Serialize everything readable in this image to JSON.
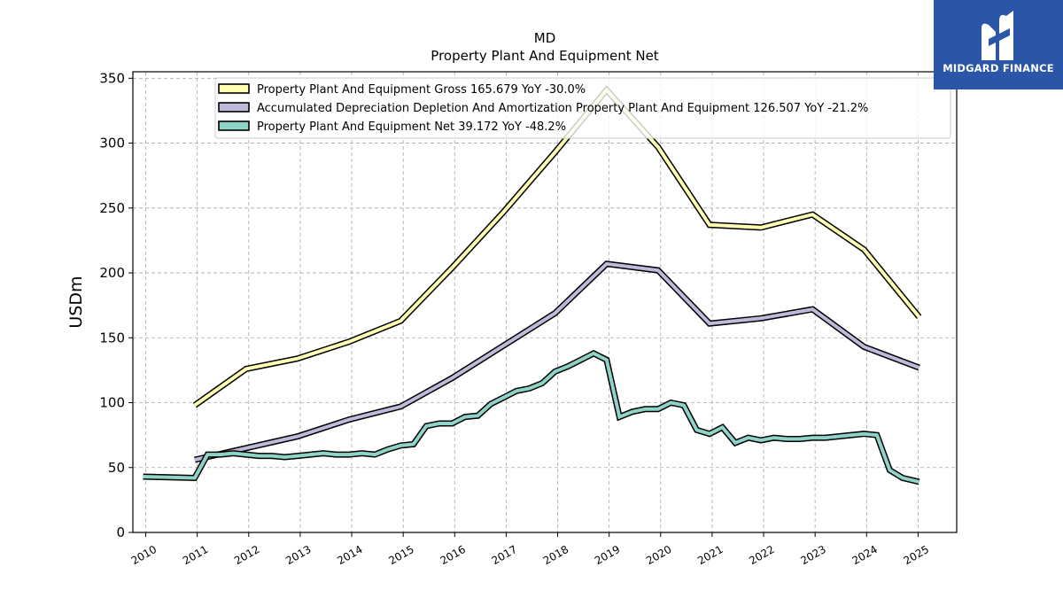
{
  "chart_data": {
    "type": "line",
    "title": "MD",
    "subtitle": "Property Plant And Equipment Net",
    "ylabel": "USDm",
    "ylim": [
      0,
      355
    ],
    "xlim": [
      2009.75,
      2025.75
    ],
    "yticks": [
      0,
      50,
      100,
      150,
      200,
      250,
      300,
      350
    ],
    "xticks": [
      "2010",
      "2011",
      "2012",
      "2013",
      "2014",
      "2015",
      "2016",
      "2017",
      "2018",
      "2019",
      "2020",
      "2021",
      "2022",
      "2023",
      "2024",
      "2025"
    ],
    "grid": true,
    "legend_position": "top-right",
    "series": [
      {
        "name": "Property Plant And Equipment Gross  165.679 YoY -30.0%",
        "color": "#ffffb3",
        "points": [
          [
            2010.95,
            98
          ],
          [
            2011.95,
            126
          ],
          [
            2012.95,
            134
          ],
          [
            2013.95,
            147
          ],
          [
            2014.95,
            163
          ],
          [
            2015.95,
            204
          ],
          [
            2016.95,
            247
          ],
          [
            2017.95,
            293
          ],
          [
            2018.95,
            341
          ],
          [
            2019.95,
            297
          ],
          [
            2020.95,
            237
          ],
          [
            2021.95,
            235
          ],
          [
            2022.95,
            245
          ],
          [
            2023.95,
            218
          ],
          [
            2025.02,
            166
          ]
        ]
      },
      {
        "name": "Accumulated Depreciation Depletion And Amortization Property Plant And Equipment  126.507 YoY -21.2%",
        "color": "#bebada",
        "points": [
          [
            2010.95,
            56
          ],
          [
            2011.95,
            65
          ],
          [
            2012.95,
            74
          ],
          [
            2013.95,
            87
          ],
          [
            2014.95,
            97
          ],
          [
            2015.95,
            119
          ],
          [
            2016.95,
            144
          ],
          [
            2017.95,
            169
          ],
          [
            2018.95,
            207
          ],
          [
            2019.95,
            202
          ],
          [
            2020.95,
            161
          ],
          [
            2021.95,
            165
          ],
          [
            2022.95,
            172
          ],
          [
            2023.95,
            143
          ],
          [
            2025.02,
            127
          ]
        ]
      },
      {
        "name": "Property Plant And Equipment Net  39.172 YoY -48.2%",
        "color": "#8dd3c7",
        "points": [
          [
            2009.95,
            43
          ],
          [
            2010.95,
            42
          ],
          [
            2011.2,
            60
          ],
          [
            2011.45,
            60
          ],
          [
            2011.7,
            61
          ],
          [
            2011.95,
            60
          ],
          [
            2012.2,
            59
          ],
          [
            2012.45,
            59
          ],
          [
            2012.7,
            58
          ],
          [
            2012.95,
            59
          ],
          [
            2013.2,
            60
          ],
          [
            2013.45,
            61
          ],
          [
            2013.7,
            60
          ],
          [
            2013.95,
            60
          ],
          [
            2014.2,
            61
          ],
          [
            2014.45,
            60
          ],
          [
            2014.7,
            64
          ],
          [
            2014.95,
            67
          ],
          [
            2015.2,
            68
          ],
          [
            2015.45,
            82
          ],
          [
            2015.7,
            84
          ],
          [
            2015.95,
            84
          ],
          [
            2016.2,
            89
          ],
          [
            2016.45,
            90
          ],
          [
            2016.7,
            99
          ],
          [
            2016.95,
            104
          ],
          [
            2017.2,
            109
          ],
          [
            2017.45,
            111
          ],
          [
            2017.7,
            115
          ],
          [
            2017.95,
            124
          ],
          [
            2018.2,
            128
          ],
          [
            2018.45,
            133
          ],
          [
            2018.7,
            138
          ],
          [
            2018.95,
            133
          ],
          [
            2019.2,
            89
          ],
          [
            2019.45,
            93
          ],
          [
            2019.7,
            95
          ],
          [
            2019.95,
            95
          ],
          [
            2020.2,
            100
          ],
          [
            2020.45,
            98
          ],
          [
            2020.7,
            79
          ],
          [
            2020.95,
            76
          ],
          [
            2021.2,
            81
          ],
          [
            2021.45,
            69
          ],
          [
            2021.7,
            73
          ],
          [
            2021.95,
            71
          ],
          [
            2022.2,
            73
          ],
          [
            2022.45,
            72
          ],
          [
            2022.7,
            72
          ],
          [
            2022.95,
            73
          ],
          [
            2023.2,
            73
          ],
          [
            2023.45,
            74
          ],
          [
            2023.7,
            75
          ],
          [
            2023.95,
            76
          ],
          [
            2024.2,
            75
          ],
          [
            2024.45,
            48
          ],
          [
            2024.7,
            42
          ],
          [
            2025.02,
            39
          ]
        ]
      }
    ]
  },
  "logo": {
    "text": "MIDGARD FINANCE",
    "color": "#2b56a8"
  }
}
